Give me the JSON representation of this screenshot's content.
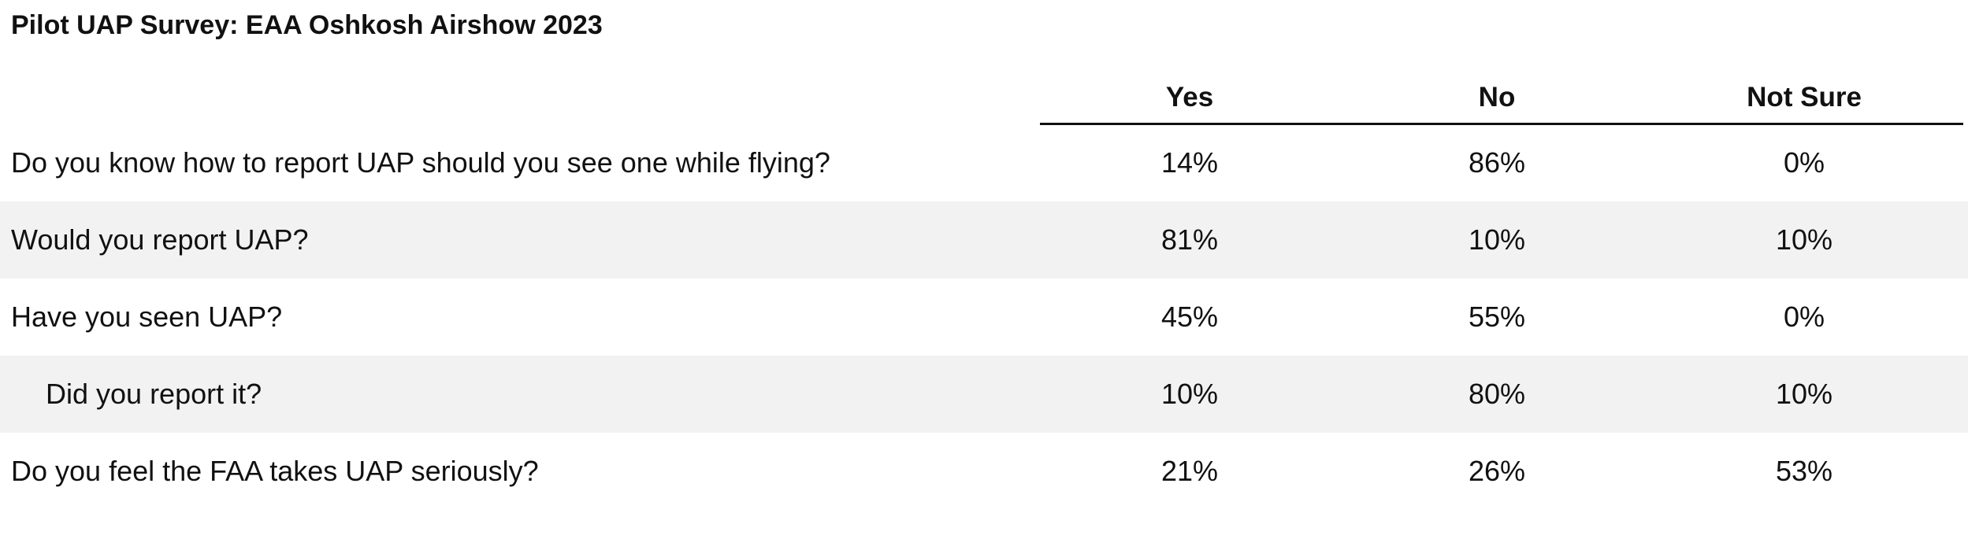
{
  "chart_data": {
    "type": "table",
    "title": "Pilot UAP Survey: EAA Oshkosh Airshow 2023",
    "columns": [
      "Yes",
      "No",
      "Not Sure"
    ],
    "rows": [
      {
        "question": "Do you know how to report UAP should you see one while flying?",
        "yes": "14%",
        "no": "86%",
        "not_sure": "0%"
      },
      {
        "question": "Would you report UAP?",
        "yes": "81%",
        "no": "10%",
        "not_sure": "10%"
      },
      {
        "question": "Have you seen UAP?",
        "yes": "45%",
        "no": "55%",
        "not_sure": "0%"
      },
      {
        "question": "Did you report it?",
        "yes": "10%",
        "no": "80%",
        "not_sure": "10%",
        "indented": true
      },
      {
        "question": "Do you feel the FAA takes UAP seriously?",
        "yes": "21%",
        "no": "26%",
        "not_sure": "53%"
      }
    ]
  },
  "colors": {
    "text": "#111111",
    "row_shade": "#f2f2f2",
    "rule": "#111111"
  }
}
